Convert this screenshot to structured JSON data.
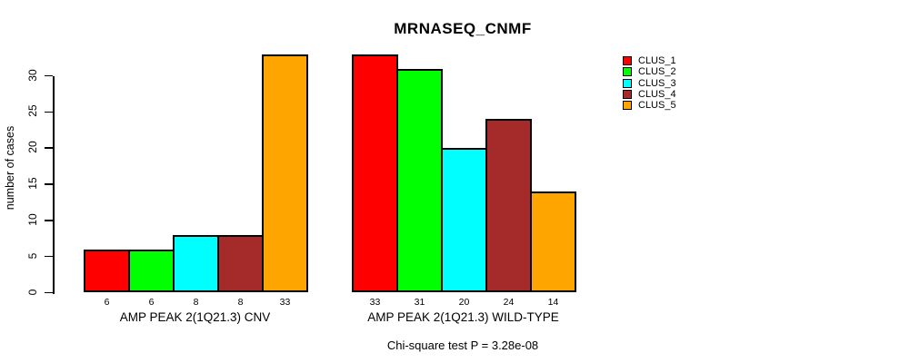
{
  "title": "MRNASEQ_CNMF",
  "ylabel": "number of cases",
  "footnote": "Chi-square test P = 3.28e-08",
  "chart_data": {
    "type": "bar",
    "title": "MRNASEQ_CNMF",
    "ylabel": "number of cases",
    "xlabel": "",
    "categories": [
      "AMP PEAK 2(1Q21.3) CNV",
      "AMP PEAK 2(1Q21.3) WILD-TYPE"
    ],
    "series": [
      {
        "name": "CLUS_1",
        "color": "#FF0000",
        "values": [
          6,
          33
        ]
      },
      {
        "name": "CLUS_2",
        "color": "#00FF00",
        "values": [
          6,
          31
        ]
      },
      {
        "name": "CLUS_3",
        "color": "#00FFFF",
        "values": [
          8,
          20
        ]
      },
      {
        "name": "CLUS_4",
        "color": "#A52A2A",
        "values": [
          8,
          24
        ]
      },
      {
        "name": "CLUS_5",
        "color": "#FFA500",
        "values": [
          33,
          14
        ]
      }
    ],
    "bar_value_labels": [
      [
        6,
        6,
        8,
        8,
        33
      ],
      [
        33,
        31,
        20,
        24,
        14
      ]
    ],
    "ylim": [
      0,
      33
    ],
    "yticks": [
      0,
      5,
      10,
      15,
      20,
      25,
      30
    ],
    "grid": false,
    "legend_position": "right",
    "annotation": "Chi-square test P = 3.28e-08"
  }
}
